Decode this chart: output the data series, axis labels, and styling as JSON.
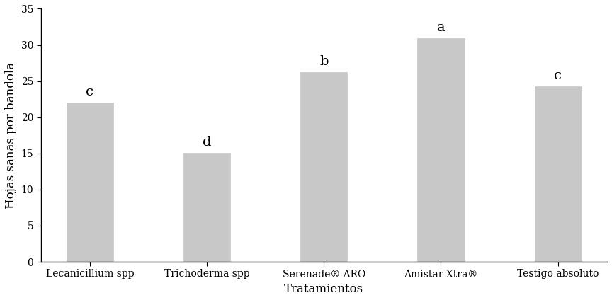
{
  "categories": [
    "Lecanicillium spp",
    "Trichoderma spp",
    "Serenade® ARO",
    "Amistar Xtra®",
    "Testigo absoluto"
  ],
  "values": [
    22.0,
    15.1,
    26.2,
    30.9,
    24.3
  ],
  "labels": [
    "c",
    "d",
    "b",
    "a",
    "c"
  ],
  "bar_color": "#c8c8c8",
  "bar_edgecolor": "#c8c8c8",
  "ylabel": "Hojas sanas por bandola",
  "xlabel": "Tratamientos",
  "ylim": [
    0,
    35
  ],
  "yticks": [
    0,
    5,
    10,
    15,
    20,
    25,
    30,
    35
  ],
  "background_color": "#ffffff",
  "label_fontsize": 12,
  "tick_fontsize": 10,
  "annotation_fontsize": 14,
  "bar_width": 0.4
}
